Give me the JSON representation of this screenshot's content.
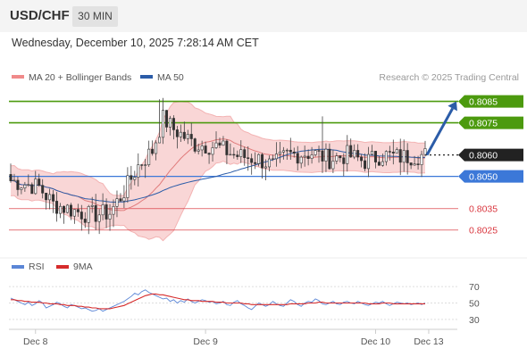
{
  "header": {
    "symbol": "USD/CHF",
    "timeframe": "30 MIN",
    "datetime": "Wednesday, December 10, 2025 7:28:14 AM CET"
  },
  "legend": {
    "items": [
      {
        "label": "MA 20 + Bollinger Bands",
        "color": "#f08a8a"
      },
      {
        "label": "MA 50",
        "color": "#2b5ca8"
      }
    ],
    "copyright": "Research © 2025 Trading Central"
  },
  "rsi_legend": {
    "items": [
      {
        "label": "RSI",
        "color": "#5b86d6"
      },
      {
        "label": "9MA",
        "color": "#d62b2b"
      }
    ]
  },
  "colors": {
    "resistance": "#4c9a0e",
    "current": "#222222",
    "pivot": "#3c78d8",
    "support": "#d9363e",
    "bollinger_fill": "#f9d6d6",
    "candle_up": "#ffffff",
    "candle_down": "#333333",
    "arrow": "#2b5ca8"
  },
  "chart_data": [
    {
      "type": "candlestick",
      "ylim": [
        0.8019,
        0.8089
      ],
      "x_ticks": [
        {
          "label": "Dec 8",
          "index": 7
        },
        {
          "label": "Dec 9",
          "index": 55
        },
        {
          "label": "Dec 10",
          "index": 103
        },
        {
          "label": "Dec 13",
          "index": 118
        }
      ],
      "levels": [
        {
          "label": "0.8085",
          "value": 0.8085,
          "kind": "resistance"
        },
        {
          "label": "0.8075",
          "value": 0.8075,
          "kind": "resistance"
        },
        {
          "label": "0.8060",
          "value": 0.806,
          "kind": "current"
        },
        {
          "label": "0.8050",
          "value": 0.805,
          "kind": "pivot"
        },
        {
          "label": "0.8035",
          "value": 0.8035,
          "kind": "support"
        },
        {
          "label": "0.8025",
          "value": 0.8025,
          "kind": "support"
        }
      ],
      "forecast_arrow": {
        "from": 0.806,
        "to": 0.8085
      },
      "series_count": 118,
      "close_path": [
        [
          0,
          0.8048
        ],
        [
          8,
          0.8045
        ],
        [
          12,
          0.8037
        ],
        [
          18,
          0.8034
        ],
        [
          22,
          0.8032
        ],
        [
          28,
          0.8033
        ],
        [
          32,
          0.8043
        ],
        [
          36,
          0.8055
        ],
        [
          40,
          0.8062
        ],
        [
          43,
          0.8077
        ],
        [
          46,
          0.8072
        ],
        [
          52,
          0.8065
        ],
        [
          58,
          0.8064
        ],
        [
          63,
          0.806
        ],
        [
          70,
          0.8058
        ],
        [
          74,
          0.8055
        ],
        [
          78,
          0.806
        ],
        [
          85,
          0.8061
        ],
        [
          90,
          0.8058
        ],
        [
          95,
          0.806
        ],
        [
          100,
          0.8057
        ],
        [
          105,
          0.806
        ],
        [
          110,
          0.8059
        ],
        [
          117,
          0.806
        ]
      ],
      "spikes": [
        {
          "index": 42,
          "high": 0.8086
        },
        {
          "index": 88,
          "high": 0.8078
        },
        {
          "index": 71,
          "low": 0.8049
        }
      ]
    },
    {
      "type": "line",
      "name": "RSI",
      "ylim": [
        20,
        80
      ],
      "y_ticks": [
        70,
        50,
        30
      ],
      "series": [
        {
          "name": "RSI",
          "values": [
            56,
            54,
            52,
            50,
            48,
            51,
            47,
            49,
            53,
            50,
            44,
            46,
            48,
            51,
            49,
            46,
            44,
            48,
            47,
            45,
            43,
            44,
            42,
            40,
            41,
            43,
            40,
            42,
            44,
            46,
            48,
            50,
            52,
            55,
            58,
            62,
            60,
            64,
            66,
            63,
            61,
            59,
            57,
            55,
            56,
            52,
            54,
            50,
            53,
            51,
            55,
            52,
            50,
            52,
            54,
            53,
            51,
            52,
            49,
            50,
            52,
            48,
            47,
            51,
            53,
            49,
            47,
            44,
            42,
            46,
            50,
            48,
            46,
            48,
            52,
            49,
            47,
            46,
            50,
            54,
            52,
            48,
            46,
            50,
            52,
            51,
            55,
            53,
            49,
            48,
            50,
            52,
            49,
            48,
            51,
            52,
            50,
            49,
            52,
            50,
            48,
            47,
            49,
            51,
            50,
            52,
            49,
            47,
            49,
            51,
            50,
            49,
            50,
            48,
            49,
            50,
            48,
            50
          ]
        },
        {
          "name": "9MA",
          "values": [
            54,
            54,
            53,
            53,
            52,
            52,
            51,
            51,
            51,
            50,
            50,
            49,
            49,
            49,
            48,
            48,
            47,
            47,
            47,
            46,
            46,
            45,
            45,
            44,
            44,
            43,
            43,
            43,
            43,
            44,
            45,
            46,
            47,
            49,
            51,
            53,
            55,
            57,
            59,
            60,
            61,
            61,
            60,
            60,
            59,
            58,
            57,
            56,
            55,
            54,
            54,
            53,
            53,
            53,
            52,
            52,
            52,
            52,
            51,
            51,
            51,
            50,
            50,
            50,
            50,
            50,
            49,
            49,
            48,
            48,
            48,
            48,
            48,
            48,
            48,
            48,
            48,
            48,
            48,
            49,
            49,
            49,
            49,
            49,
            50,
            50,
            50,
            51,
            51,
            50,
            50,
            50,
            50,
            50,
            50,
            50,
            50,
            50,
            50,
            50,
            50,
            49,
            49,
            49,
            49,
            50,
            50,
            50,
            49,
            49,
            49,
            49,
            49,
            49,
            49,
            49,
            49,
            49
          ]
        }
      ]
    }
  ]
}
